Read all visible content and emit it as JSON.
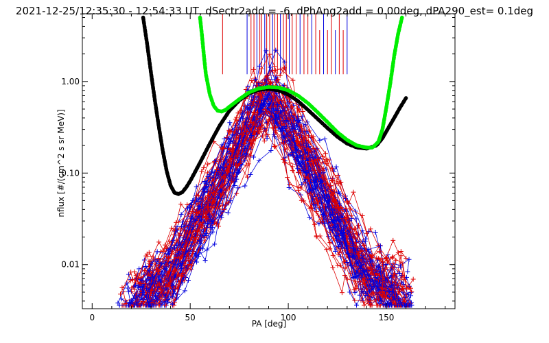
{
  "chart_data": {
    "type": "line",
    "title": "2021-12-25/12:35:30 - 12:54:33 UT, dSectr2add = -6, dPhAng2add = 0.00deg, dPA290_est=   0.1deg",
    "xlabel": "PA [deg]",
    "ylabel": "nflux [#/(cm^2 s sr MeV)]",
    "xlim": [
      -5,
      185
    ],
    "ylim": [
      0.0033,
      5.5
    ],
    "yscale": "log",
    "grid": false,
    "x_ticks": [
      0,
      50,
      100,
      150
    ],
    "x_tick_labels": [
      "0",
      "50",
      "100",
      "150"
    ],
    "y_ticks": [
      0.01,
      0.1,
      1.0
    ],
    "y_tick_labels": [
      "0.01",
      "0.10",
      "1.00"
    ],
    "colors": {
      "red_series": "#dd0000",
      "blue_series": "#0000dd",
      "black_fit": "#000000",
      "green_fit": "#00ee00"
    },
    "series": [
      {
        "style": "black thick dotted fit curve",
        "x": [
          26,
          28,
          30,
          32,
          34,
          36,
          38,
          40,
          42,
          44,
          46,
          48,
          50,
          55,
          60,
          65,
          70,
          75,
          80,
          85,
          90,
          95,
          100,
          105,
          110,
          115,
          120,
          125,
          130,
          135,
          140,
          145,
          148,
          151,
          154,
          157,
          160
        ],
        "y": [
          5.0,
          2.6,
          1.25,
          0.62,
          0.32,
          0.175,
          0.105,
          0.073,
          0.061,
          0.059,
          0.062,
          0.07,
          0.082,
          0.13,
          0.21,
          0.33,
          0.48,
          0.62,
          0.74,
          0.81,
          0.83,
          0.8,
          0.72,
          0.61,
          0.49,
          0.39,
          0.31,
          0.25,
          0.21,
          0.19,
          0.185,
          0.2,
          0.24,
          0.31,
          0.4,
          0.52,
          0.66
        ]
      },
      {
        "style": "green thick dotted fit curve",
        "x": [
          55,
          56,
          57,
          58,
          60,
          62,
          64,
          66,
          68,
          70,
          75,
          80,
          85,
          90,
          95,
          100,
          105,
          110,
          115,
          120,
          125,
          130,
          135,
          140,
          143,
          146,
          148,
          150,
          152,
          154,
          156,
          158
        ],
        "y": [
          5.0,
          3.2,
          1.9,
          1.2,
          0.72,
          0.54,
          0.48,
          0.47,
          0.49,
          0.53,
          0.64,
          0.76,
          0.84,
          0.87,
          0.86,
          0.8,
          0.7,
          0.58,
          0.46,
          0.36,
          0.28,
          0.23,
          0.2,
          0.19,
          0.19,
          0.22,
          0.3,
          0.52,
          0.95,
          1.9,
          3.3,
          5.0
        ]
      }
    ],
    "scatter_note": "many red and blue '+' marked flux traces, each rising from ~0.005 near PA 20-40 deg to ~0.9 near PA 90 deg and falling to ~0.005 near PA 160 deg",
    "vertical_markers_note": "vertical red/blue marker lines from top of plot down to ~1.2 between PA 66 and 130 deg"
  }
}
